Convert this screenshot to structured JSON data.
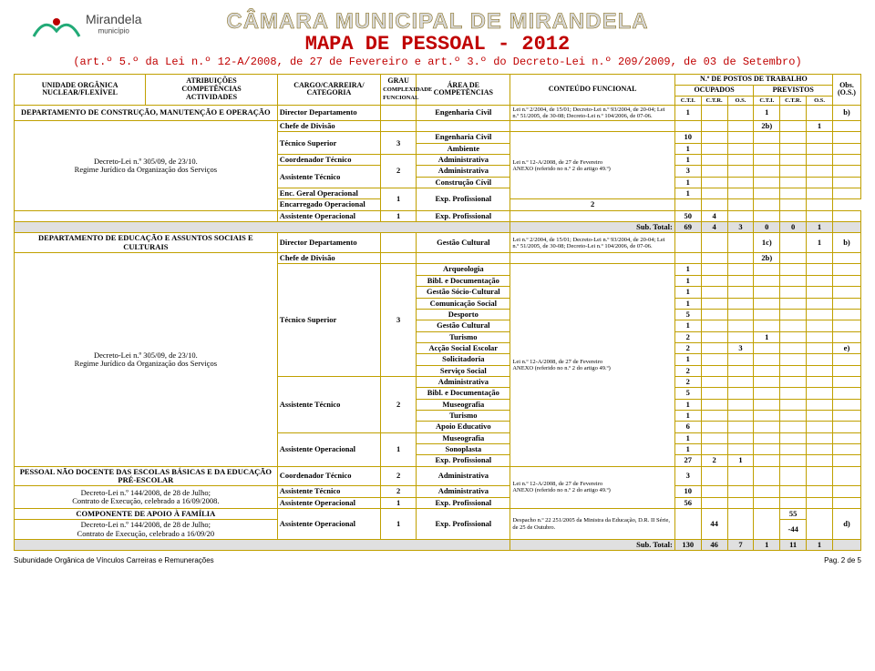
{
  "header": {
    "logo_text": "Mirandela",
    "logo_sub": "município",
    "org": "CÂMARA MUNICIPAL DE MIRANDELA",
    "title": "MAPA DE PESSOAL - 2012",
    "subtitle": "(art.º 5.º da Lei n.º 12-A/2008, de 27 de Fevereiro e art.º 3.º do Decreto-Lei n.º 209/2009, de 03 de Setembro)"
  },
  "cols": {
    "c1a": "UNIDADE ORGÂNICA",
    "c1b": "NUCLEAR/FLEXÍVEL",
    "c2a": "ATRIBUIÇÕES",
    "c2b": "COMPETÊNCIAS",
    "c2c": "ACTIVIDADES",
    "c3a": "CARGO/CARREIRA/",
    "c3b": "CATEGORIA",
    "c4a": "GRAU",
    "c4b": "COMPLEXIDADE FUNCIONAL",
    "c5a": "ÁREA DE",
    "c5b": "COMPETÊNCIAS",
    "c6": "CONTEÚDO FUNCIONAL",
    "c7": "N.º DE POSTOS DE TRABALHO",
    "c7a": "OCUPADOS",
    "c7b": "PREVISTOS",
    "c8a": "Obs.",
    "c8b": "(O.S.)",
    "h1": "C.T.I.",
    "h2": "C.T.R.",
    "h3": "O.S.",
    "h4": "C.T.I.",
    "h5": "C.T.R.",
    "h6": "O.S."
  },
  "sec1": {
    "unit": "DEPARTAMENTO DE CONSTRUÇÃO, MANUTENÇÃO E OPERAÇÃO",
    "decree": "Decreto-Lei n.º 305/09, de 23/10.\nRegime Jurídico da Organização dos Serviços",
    "r1_cargo": "Director Departamento",
    "r1_area": "Engenharia Civil",
    "r1_cont": "Lei n.º 2/2004, de 15/01; Decreto-Lei n.º 93/2004, de 20-04; Lei n.º 51/2005, de 30-08; Decreto-Lei n.º 104/2006, de 07-06.",
    "r1_v1": "1",
    "r1_v4": "1",
    "r1_obs": "b)",
    "r2_cargo": "Chefe de Divisão",
    "r2_v4": "2b)",
    "r2_v6": "1",
    "r3_cargo": "Técnico Superior",
    "r3_grau": "3",
    "r3_area1": "Engenharia Civil",
    "r3_v1a": "10",
    "r3_area2": "Ambiente",
    "r3_v1b": "1",
    "r4_cargo": "Coordenador Técnico",
    "r4_area": "Administrativa",
    "r4_v1": "1",
    "r5_cargo": "Assistente Técnico",
    "r5_grau": "2",
    "r5_area1": "Administrativa",
    "r5_v1a": "3",
    "r5_area2": "Construção Cívil",
    "r5_v1b": "1",
    "r5_cont": "Lei n.º 12-A/2008, de 27 de Fevereiro\nANEXO (referido no n.º 2 do artigo 49.º)",
    "r6_cargo": "Enc. Geral Operacional",
    "r6_grau": "1",
    "r6_area": "Exp. Profissional",
    "r6_v1": "1",
    "r7_cargo": "Encarregado Operacional",
    "r7_v1": "2",
    "r8_cargo": "Assistente Operacional",
    "r8_grau": "1",
    "r8_area": "Exp. Profissional",
    "r8_v1": "50",
    "r8_v2": "4",
    "sub_label": "Sub. Total:",
    "sub": [
      "69",
      "4",
      "3",
      "0",
      "0",
      "1"
    ]
  },
  "sec2": {
    "unit": "DEPARTAMENTO DE EDUCAÇÃO E ASSUNTOS SOCIAIS E CULTURAIS",
    "decree": "Decreto-Lei n.º 305/09, de 23/10.\nRegime Jurídico da Organização dos Serviços",
    "r1_cargo": "Director Departamento",
    "r1_area": "Gestão Cultural",
    "r1_cont": "Lei n.º 2/2004, de 15/01; Decreto-Lei n.º 93/2004, de 20-04; Lei n.º 51/2005, de 30-08; Decreto-Lei n.º 104/2006, de 07-06.",
    "r1_v4": "1c)",
    "r1_v6": "1",
    "r1_obs": "b)",
    "r2_cargo": "Chefe de Divisão",
    "r2_v4": "2b)",
    "ts_cargo": "Técnico Superior",
    "ts_grau": "3",
    "ts_rows": [
      {
        "area": "Arqueologia",
        "v": [
          "1",
          "",
          "",
          "",
          ""
        ]
      },
      {
        "area": "Bibl. e Documentação",
        "v": [
          "1",
          "",
          "",
          "",
          ""
        ]
      },
      {
        "area": "Gestão Sócio-Cultural",
        "v": [
          "1",
          "",
          "",
          "",
          ""
        ]
      },
      {
        "area": "Comunicação Social",
        "v": [
          "1",
          "",
          "",
          "",
          ""
        ]
      },
      {
        "area": "Desporto",
        "v": [
          "5",
          "",
          "",
          "",
          ""
        ]
      },
      {
        "area": "Gestão Cultural",
        "v": [
          "1",
          "",
          "",
          "",
          ""
        ]
      },
      {
        "area": "Turismo",
        "v": [
          "2",
          "",
          "",
          "1",
          ""
        ]
      },
      {
        "area": "Acção Social Escolar",
        "v": [
          "2",
          "",
          "3",
          "",
          ""
        ],
        "obs": "e)"
      },
      {
        "area": "Solicitadoria",
        "v": [
          "1",
          "",
          "",
          "",
          ""
        ]
      },
      {
        "area": "Serviço Social",
        "v": [
          "2",
          "",
          "",
          "",
          ""
        ]
      }
    ],
    "ts_cont": "Lei n.º 12-A/2008, de 27 de Fevereiro\nANEXO (referido no n.º 2 do artigo 49.º)",
    "at_cargo": "Assistente Técnico",
    "at_grau": "2",
    "at_rows": [
      {
        "area": "Administrativa",
        "v": [
          "2",
          "",
          "",
          "",
          ""
        ]
      },
      {
        "area": "Bibl. e Documentação",
        "v": [
          "5",
          "",
          "",
          "",
          ""
        ]
      },
      {
        "area": "Museografia",
        "v": [
          "1",
          "",
          "",
          "",
          ""
        ]
      },
      {
        "area": "Turismo",
        "v": [
          "1",
          "",
          "",
          "",
          ""
        ]
      },
      {
        "area": "Apoio Educativo",
        "v": [
          "6",
          "",
          "",
          "",
          ""
        ]
      }
    ],
    "ao_cargo": "Assistente Operacional",
    "ao_grau": "1",
    "ao_rows": [
      {
        "area": "Museografia",
        "v": [
          "1",
          "",
          "",
          "",
          ""
        ]
      },
      {
        "area": "Sonoplasta",
        "v": [
          "1",
          "",
          "",
          "",
          ""
        ]
      },
      {
        "area": "Exp. Profissional",
        "v": [
          "27",
          "2",
          "1",
          "",
          ""
        ]
      }
    ]
  },
  "sec3": {
    "unit": "PESSOAL NÃO DOCENTE DAS ESCOLAS BÁSICAS E DA EDUCAÇÃO PRÉ-ESCOLAR",
    "decree": "Decreto-Lei n.º 144/2008, de 28 de Julho;\nContrato de Execução, celebrado a 16/09/2008.",
    "r1_cargo": "Coordenador Técnico",
    "r1_grau": "2",
    "r1_area": "Administrativa",
    "r1_v1": "3",
    "r1_cont": "Lei n.º 12-A/2008, de 27 de Fevereiro\nANEXO (referido no n.º 2 do artigo 49.º)",
    "r2_cargo": "Assistente Técnico",
    "r2_grau": "2",
    "r2_area": "Administrativa",
    "r2_v1": "10",
    "r3_cargo": "Assistente Operacional",
    "r3_grau": "1",
    "r3_area": "Exp. Profissional",
    "r3_v1": "56"
  },
  "sec4": {
    "unit": "COMPONENTE DE APOIO À FAMÍLIA",
    "decree": "Decreto-Lei n.º 144/2008, de 28 de Julho;\nContrato de Execução, celebrado a 16/09/20",
    "r1_cargo": "Assistente Operacional",
    "r1_grau": "1",
    "r1_area": "Exp. Profissional",
    "r1_cont": "Despacho n.º 22 251/2005 da Ministra da Educação, D.R. II Série, de 25 de Outubro.",
    "r1_v2": "44",
    "r1_v5a": "55",
    "r1_v5b": "-44",
    "r1_obs": "d)",
    "sub_label": "Sub. Total:",
    "sub": [
      "130",
      "46",
      "7",
      "1",
      "11",
      "1"
    ]
  },
  "footer": {
    "left": "Subunidade Orgânica de Vínculos Carreiras e Remunerações",
    "right": "Pag. 2 de 5"
  }
}
